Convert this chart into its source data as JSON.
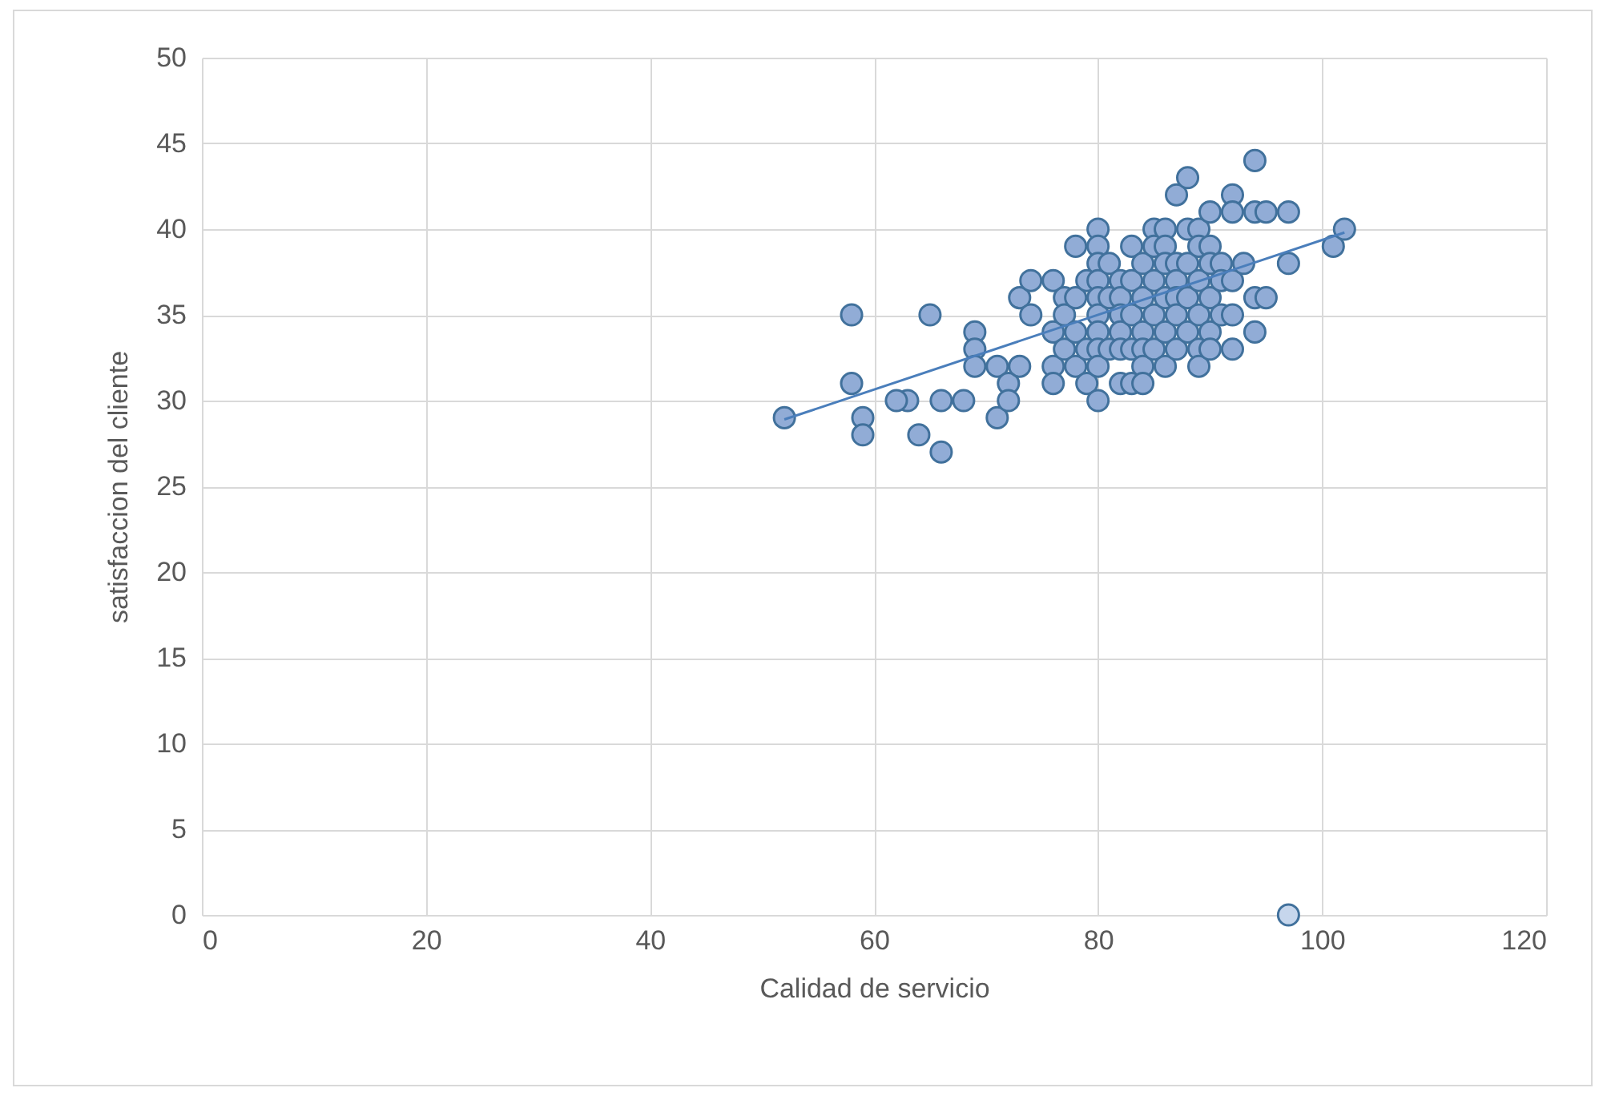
{
  "chart_data": {
    "type": "scatter",
    "xlabel": "Calidad de servicio",
    "ylabel": "satisfaccion del cliente",
    "xlim": [
      0,
      120
    ],
    "xticks": [
      0,
      20,
      40,
      60,
      80,
      100,
      120
    ],
    "ylim": [
      0,
      50
    ],
    "yticks": [
      0,
      5,
      10,
      15,
      20,
      25,
      30,
      35,
      40,
      45,
      50
    ],
    "grid": true,
    "marker": "circle",
    "series": [
      {
        "color": "#91acd6",
        "x": [
          52,
          58,
          58,
          59,
          59,
          63,
          62,
          64,
          65,
          66,
          66,
          68,
          69,
          69,
          69,
          71,
          71,
          72,
          72,
          73,
          73,
          74,
          74,
          76,
          76,
          76,
          76,
          77,
          77,
          77,
          78,
          78,
          78,
          78,
          79,
          79,
          79,
          80,
          80,
          80,
          80,
          80,
          80,
          80,
          80,
          80,
          80,
          81,
          81,
          81,
          82,
          82,
          82,
          82,
          82,
          82,
          83,
          83,
          83,
          83,
          83,
          84,
          84,
          84,
          84,
          84,
          84,
          85,
          85,
          85,
          85,
          85,
          86,
          86,
          86,
          86,
          86,
          86,
          87,
          87,
          87,
          87,
          87,
          87,
          88,
          88,
          88,
          88,
          88,
          89,
          89,
          89,
          89,
          89,
          89,
          90,
          90,
          90,
          90,
          90,
          90,
          91,
          91,
          91,
          92,
          92,
          92,
          92,
          92,
          93,
          94,
          94,
          94,
          94,
          95,
          95,
          97,
          97,
          101,
          102
        ],
        "values": [
          29,
          35,
          31,
          29,
          28,
          30,
          30,
          28,
          35,
          30,
          27,
          30,
          34,
          33,
          32,
          32,
          29,
          31,
          30,
          36,
          32,
          37,
          35,
          37,
          34,
          32,
          31,
          36,
          35,
          33,
          39,
          36,
          34,
          32,
          37,
          33,
          31,
          40,
          39,
          38,
          37,
          36,
          35,
          34,
          33,
          32,
          30,
          38,
          36,
          33,
          37,
          36,
          35,
          34,
          33,
          31,
          39,
          37,
          35,
          33,
          31,
          38,
          36,
          34,
          33,
          32,
          31,
          40,
          39,
          37,
          35,
          33,
          40,
          39,
          38,
          36,
          34,
          32,
          42,
          38,
          37,
          36,
          35,
          33,
          43,
          40,
          38,
          36,
          34,
          40,
          39,
          37,
          35,
          33,
          32,
          41,
          39,
          38,
          36,
          34,
          33,
          38,
          37,
          35,
          42,
          41,
          37,
          35,
          33,
          38,
          44,
          41,
          36,
          34,
          41,
          36,
          41,
          38,
          39,
          40
        ]
      },
      {
        "color": "#c6d6ec",
        "x": [
          97
        ],
        "values": [
          0
        ]
      },
      {
        "type": "line",
        "marker": "none",
        "color": "#4a7ebb",
        "x": [
          52,
          102
        ],
        "values": [
          28.9,
          39.8
        ]
      }
    ]
  }
}
